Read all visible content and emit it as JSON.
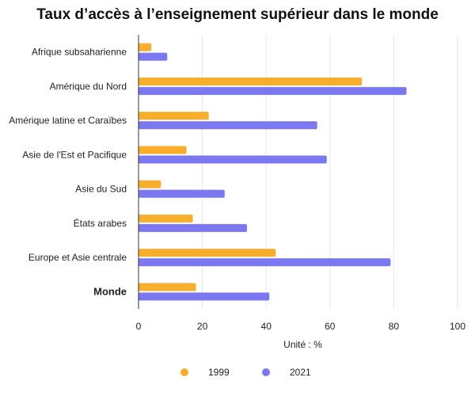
{
  "chart_data": {
    "type": "bar",
    "orientation": "horizontal",
    "title": "Taux d’accès à l’enseignement supérieur dans le monde",
    "xlabel": "Unité : %",
    "ylabel": "",
    "xlim": [
      0,
      100
    ],
    "x_ticks": [
      0,
      20,
      40,
      60,
      80,
      100
    ],
    "grid": true,
    "legend_position": "bottom",
    "categories": [
      "Afrique subsaharienne",
      "Amérique du Nord",
      "Amérique latine et Caraïbes",
      "Asie de l'Est et Pacifique",
      "Asie du Sud",
      "États arabes",
      "Europe et Asie centrale",
      "Monde"
    ],
    "bold_categories": [
      "Monde"
    ],
    "series": [
      {
        "name": "1999",
        "color": "#F9AE2B",
        "values": [
          4,
          70,
          22,
          15,
          7,
          17,
          43,
          18
        ]
      },
      {
        "name": "2021",
        "color": "#7B78F2",
        "values": [
          9,
          84,
          56,
          59,
          27,
          34,
          79,
          41
        ]
      }
    ]
  }
}
